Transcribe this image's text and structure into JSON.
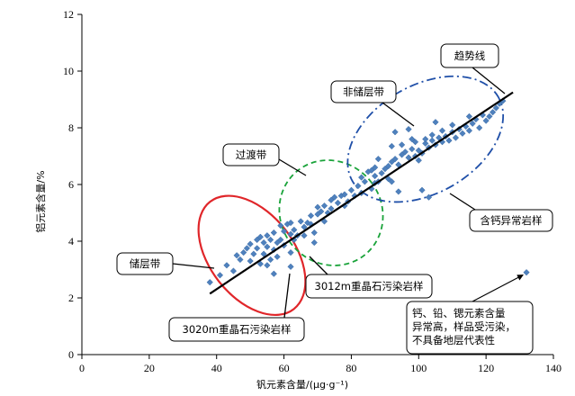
{
  "chart_data": {
    "type": "scatter",
    "xlabel": "钒元素含量/(μg·g⁻¹)",
    "ylabel": "铝元素含量/%",
    "xlim": [
      0,
      140
    ],
    "ylim": [
      0,
      12
    ],
    "xticks": [
      "0",
      "20",
      "40",
      "60",
      "80",
      "100",
      "120",
      "140"
    ],
    "yticks": [
      "0",
      "2",
      "4",
      "6",
      "8",
      "10",
      "12"
    ],
    "grid": false,
    "marker": {
      "shape": "diamond",
      "color": "#4f81bd"
    },
    "trendline": {
      "from": [
        38,
        2.15
      ],
      "to": [
        128,
        9.25
      ],
      "color": "#000000"
    },
    "zones": [
      {
        "label": "储层带",
        "shape": "ellipse",
        "style": "solid",
        "color": "#e0262a",
        "center": [
          50.5,
          3.5
        ],
        "rx": 12.5,
        "ry": 2.4,
        "rotation": -38
      },
      {
        "label": "过渡带",
        "shape": "ellipse",
        "style": "dashed",
        "color": "#1aa33a",
        "center": [
          74,
          5.0
        ],
        "rx": 15,
        "ry": 1.9,
        "rotation": -38
      },
      {
        "label": "非储层带",
        "shape": "ellipse",
        "style": "dash-dot",
        "color": "#1f4fa8",
        "center": [
          102,
          7.6
        ],
        "rx": 25,
        "ry": 1.9,
        "rotation": -30
      }
    ],
    "points": [
      [
        38,
        2.55
      ],
      [
        41,
        2.8
      ],
      [
        43,
        3.15
      ],
      [
        45,
        2.95
      ],
      [
        46,
        3.5
      ],
      [
        47,
        3.35
      ],
      [
        48,
        3.6
      ],
      [
        49,
        3.75
      ],
      [
        50,
        3.3
      ],
      [
        50,
        3.9
      ],
      [
        51,
        3.55
      ],
      [
        52,
        4.05
      ],
      [
        52,
        3.75
      ],
      [
        53,
        3.2
      ],
      [
        53,
        4.15
      ],
      [
        54,
        3.95
      ],
      [
        54,
        3.55
      ],
      [
        55,
        4.2
      ],
      [
        55,
        3.8
      ],
      [
        56,
        3.35
      ],
      [
        56,
        4.05
      ],
      [
        57,
        4.3
      ],
      [
        57,
        3.7
      ],
      [
        58,
        3.95
      ],
      [
        58,
        3.45
      ],
      [
        59,
        4.55
      ],
      [
        59,
        4.05
      ],
      [
        60,
        3.85
      ],
      [
        60,
        4.35
      ],
      [
        61,
        4.6
      ],
      [
        57,
        2.85
      ],
      [
        62,
        3.1
      ],
      [
        55,
        3.15
      ],
      [
        62,
        4.25
      ],
      [
        63,
        4.4
      ],
      [
        64,
        4.2
      ],
      [
        65,
        4.7
      ],
      [
        66,
        4.5
      ],
      [
        67,
        4.65
      ],
      [
        68,
        4.9
      ],
      [
        68,
        4.6
      ],
      [
        69,
        4.3
      ],
      [
        70,
        4.95
      ],
      [
        70,
        5.2
      ],
      [
        71,
        5.05
      ],
      [
        72,
        5.25
      ],
      [
        72,
        4.7
      ],
      [
        73,
        5.0
      ],
      [
        74,
        5.45
      ],
      [
        74,
        5.15
      ],
      [
        75,
        5.55
      ],
      [
        76,
        5.35
      ],
      [
        77,
        5.6
      ],
      [
        78,
        5.25
      ],
      [
        79,
        5.4
      ],
      [
        80,
        5.8
      ],
      [
        81,
        5.6
      ],
      [
        82,
        5.95
      ],
      [
        83,
        5.7
      ],
      [
        83,
        6.25
      ],
      [
        84,
        6.1
      ],
      [
        85,
        6.45
      ],
      [
        86,
        5.85
      ],
      [
        87,
        6.3
      ],
      [
        87,
        6.6
      ],
      [
        88,
        6.1
      ],
      [
        89,
        6.4
      ],
      [
        90,
        6.55
      ],
      [
        91,
        6.65
      ],
      [
        92,
        6.8
      ],
      [
        92,
        7.35
      ],
      [
        93,
        6.9
      ],
      [
        94,
        6.7
      ],
      [
        95,
        7.05
      ],
      [
        95,
        7.4
      ],
      [
        96,
        7.15
      ],
      [
        97,
        6.95
      ],
      [
        98,
        7.25
      ],
      [
        99,
        7.5
      ],
      [
        99,
        7.0
      ],
      [
        100,
        7.2
      ],
      [
        101,
        7.1
      ],
      [
        102,
        7.45
      ],
      [
        102,
        7.6
      ],
      [
        103,
        7.3
      ],
      [
        104,
        7.55
      ],
      [
        104,
        7.75
      ],
      [
        105,
        7.4
      ],
      [
        106,
        7.65
      ],
      [
        107,
        7.5
      ],
      [
        107,
        7.9
      ],
      [
        108,
        7.7
      ],
      [
        109,
        7.55
      ],
      [
        110,
        7.85
      ],
      [
        110,
        8.1
      ],
      [
        111,
        7.65
      ],
      [
        112,
        7.95
      ],
      [
        113,
        7.8
      ],
      [
        114,
        8.05
      ],
      [
        115,
        7.9
      ],
      [
        116,
        8.15
      ],
      [
        117,
        8.3
      ],
      [
        118,
        8.0
      ],
      [
        119,
        8.45
      ],
      [
        120,
        8.25
      ],
      [
        121,
        8.4
      ],
      [
        122,
        8.55
      ],
      [
        123,
        8.7
      ],
      [
        124,
        8.85
      ],
      [
        125,
        8.95
      ],
      [
        93,
        7.85
      ],
      [
        97,
        7.95
      ],
      [
        105,
        8.2
      ],
      [
        100,
        6.85
      ],
      [
        62,
        4.65
      ],
      [
        63,
        4.05
      ],
      [
        66,
        4.2
      ],
      [
        69,
        3.95
      ],
      [
        88,
        6.9
      ],
      [
        91,
        6.2
      ],
      [
        86,
        6.5
      ],
      [
        78,
        5.65
      ],
      [
        92,
        6.1
      ],
      [
        94,
        5.75
      ],
      [
        87,
        6.05
      ],
      [
        98,
        7.6
      ],
      [
        115,
        8.4
      ],
      [
        62,
        3.6
      ],
      [
        101,
        5.8
      ],
      [
        103,
        5.55
      ],
      [
        132,
        2.9
      ]
    ],
    "annotations": [
      {
        "text": "趋势线"
      },
      {
        "text": "非储层带"
      },
      {
        "text": "过渡带"
      },
      {
        "text": "储层带"
      },
      {
        "text": "3012m重晶石污染岩样"
      },
      {
        "text": "3020m重晶石污染岩样"
      },
      {
        "text": "含钙异常岩样"
      },
      {
        "lines": [
          "钙、铅、锶元素含量",
          "异常高，样品受污染，",
          "不具备地层代表性"
        ]
      }
    ]
  }
}
